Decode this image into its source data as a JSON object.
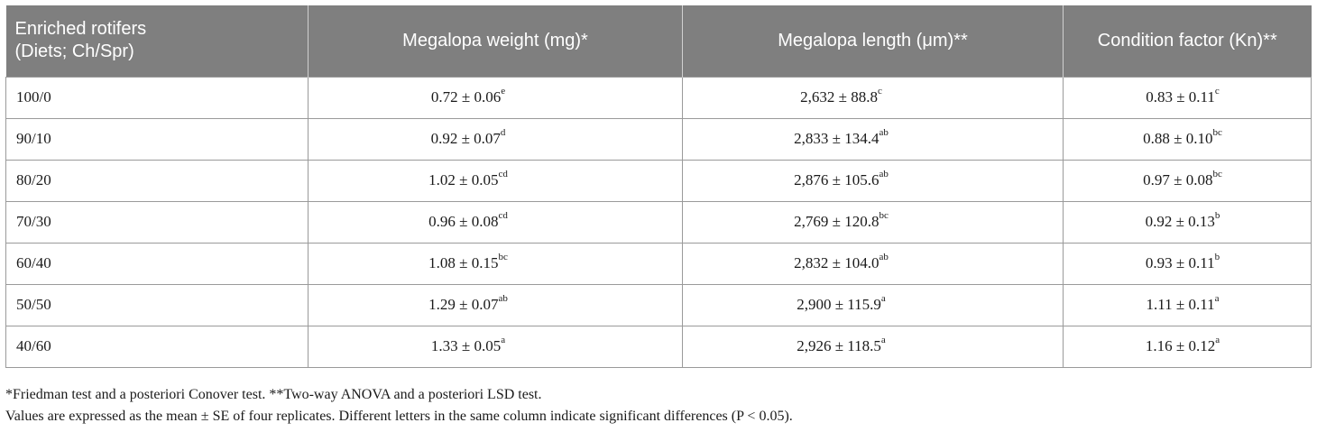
{
  "headers": [
    [
      "Enriched rotifers",
      "(Diets; Ch/Spr)"
    ],
    "Megalopa weight (mg)*",
    "Megalopa length (μm)**",
    "Condition factor (Kn)**"
  ],
  "rows": [
    {
      "diet": "100/0",
      "weight": "0.72 ± 0.06",
      "weight_sup": "e",
      "length": "2,632 ± 88.8",
      "length_sup": "c",
      "kn": "0.83 ± 0.11",
      "kn_sup": "c"
    },
    {
      "diet": "90/10",
      "weight": "0.92 ± 0.07",
      "weight_sup": "d",
      "length": "2,833 ± 134.4",
      "length_sup": "ab",
      "kn": "0.88 ± 0.10",
      "kn_sup": "bc"
    },
    {
      "diet": "80/20",
      "weight": "1.02 ± 0.05",
      "weight_sup": "cd",
      "length": "2,876 ± 105.6",
      "length_sup": "ab",
      "kn": "0.97 ± 0.08",
      "kn_sup": "bc"
    },
    {
      "diet": "70/30",
      "weight": "0.96 ± 0.08",
      "weight_sup": "cd",
      "length": "2,769 ± 120.8",
      "length_sup": "bc",
      "kn": "0.92 ± 0.13",
      "kn_sup": "b"
    },
    {
      "diet": "60/40",
      "weight": "1.08 ± 0.15",
      "weight_sup": "bc",
      "length": "2,832 ± 104.0",
      "length_sup": "ab",
      "kn": "0.93 ± 0.11",
      "kn_sup": "b"
    },
    {
      "diet": "50/50",
      "weight": "1.29 ± 0.07",
      "weight_sup": "ab",
      "length": "2,900 ± 115.9",
      "length_sup": "a",
      "kn": "1.11 ± 0.11",
      "kn_sup": "a"
    },
    {
      "diet": "40/60",
      "weight": "1.33 ± 0.05",
      "weight_sup": "a",
      "length": "2,926 ± 118.5",
      "length_sup": "a",
      "kn": "1.16 ± 0.12",
      "kn_sup": "a"
    }
  ],
  "footnotes": [
    "*Friedman test and a posteriori Conover test. **Two-way ANOVA and a posteriori LSD test.",
    "Values are expressed as the mean ± SE of four replicates. Different letters in the same column indicate significant differences (P < 0.05)."
  ],
  "colors": {
    "header_bg": "#7f7f7f",
    "header_text": "#ffffff",
    "border": "#9a9a9a"
  }
}
